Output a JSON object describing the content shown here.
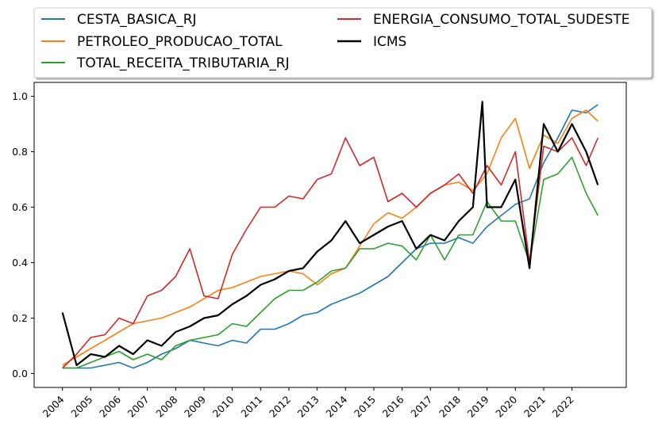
{
  "chart_data": {
    "type": "line",
    "title": "",
    "xlabel": "",
    "ylabel": "",
    "x_ticks": [
      "2004",
      "2005",
      "2006",
      "2007",
      "2008",
      "2009",
      "2010",
      "2011",
      "2012",
      "2013",
      "2014",
      "2015",
      "2016",
      "2017",
      "2018",
      "2019",
      "2020",
      "2021",
      "2022"
    ],
    "y_ticks": [
      "0.0",
      "0.2",
      "0.4",
      "0.6",
      "0.8",
      "1.0"
    ],
    "xlim": [
      "2003-01",
      "2023-12"
    ],
    "ylim": [
      -0.05,
      1.05
    ],
    "grid": false,
    "legend": {
      "placement": "top (outside plot, 2 columns)"
    },
    "series": [
      {
        "name": "CESTA_BASICA_RJ",
        "color": "#1f77b4",
        "points": [
          [
            "2004-01",
            0.02
          ],
          [
            "2004-07",
            0.02
          ],
          [
            "2005-01",
            0.02
          ],
          [
            "2005-07",
            0.03
          ],
          [
            "2006-01",
            0.04
          ],
          [
            "2006-07",
            0.02
          ],
          [
            "2007-01",
            0.04
          ],
          [
            "2007-07",
            0.07
          ],
          [
            "2008-01",
            0.09
          ],
          [
            "2008-07",
            0.12
          ],
          [
            "2009-01",
            0.11
          ],
          [
            "2009-07",
            0.1
          ],
          [
            "2010-01",
            0.12
          ],
          [
            "2010-07",
            0.11
          ],
          [
            "2011-01",
            0.16
          ],
          [
            "2011-07",
            0.16
          ],
          [
            "2012-01",
            0.18
          ],
          [
            "2012-07",
            0.21
          ],
          [
            "2013-01",
            0.22
          ],
          [
            "2013-07",
            0.25
          ],
          [
            "2014-01",
            0.27
          ],
          [
            "2014-07",
            0.29
          ],
          [
            "2015-01",
            0.32
          ],
          [
            "2015-07",
            0.35
          ],
          [
            "2016-01",
            0.4
          ],
          [
            "2016-07",
            0.45
          ],
          [
            "2017-01",
            0.47
          ],
          [
            "2017-07",
            0.47
          ],
          [
            "2018-01",
            0.49
          ],
          [
            "2018-07",
            0.47
          ],
          [
            "2019-01",
            0.53
          ],
          [
            "2019-07",
            0.57
          ],
          [
            "2020-01",
            0.61
          ],
          [
            "2020-07",
            0.63
          ],
          [
            "2021-01",
            0.76
          ],
          [
            "2021-07",
            0.85
          ],
          [
            "2022-01",
            0.95
          ],
          [
            "2022-07",
            0.94
          ],
          [
            "2022-12",
            0.97
          ]
        ]
      },
      {
        "name": "PETROLEO_PRODUCAO_TOTAL",
        "color": "#ff7f0e",
        "points": [
          [
            "2004-01",
            0.03
          ],
          [
            "2004-07",
            0.06
          ],
          [
            "2005-01",
            0.09
          ],
          [
            "2005-07",
            0.12
          ],
          [
            "2006-01",
            0.15
          ],
          [
            "2006-07",
            0.18
          ],
          [
            "2007-01",
            0.19
          ],
          [
            "2007-07",
            0.2
          ],
          [
            "2008-01",
            0.22
          ],
          [
            "2008-07",
            0.24
          ],
          [
            "2009-01",
            0.27
          ],
          [
            "2009-07",
            0.3
          ],
          [
            "2010-01",
            0.31
          ],
          [
            "2010-07",
            0.33
          ],
          [
            "2011-01",
            0.35
          ],
          [
            "2011-07",
            0.36
          ],
          [
            "2012-01",
            0.37
          ],
          [
            "2012-07",
            0.36
          ],
          [
            "2013-01",
            0.32
          ],
          [
            "2013-07",
            0.36
          ],
          [
            "2014-01",
            0.38
          ],
          [
            "2014-07",
            0.46
          ],
          [
            "2015-01",
            0.54
          ],
          [
            "2015-07",
            0.58
          ],
          [
            "2016-01",
            0.56
          ],
          [
            "2016-07",
            0.6
          ],
          [
            "2017-01",
            0.65
          ],
          [
            "2017-07",
            0.68
          ],
          [
            "2018-01",
            0.69
          ],
          [
            "2018-07",
            0.66
          ],
          [
            "2019-01",
            0.72
          ],
          [
            "2019-07",
            0.85
          ],
          [
            "2020-01",
            0.92
          ],
          [
            "2020-07",
            0.74
          ],
          [
            "2021-01",
            0.86
          ],
          [
            "2021-07",
            0.83
          ],
          [
            "2022-01",
            0.92
          ],
          [
            "2022-07",
            0.95
          ],
          [
            "2022-12",
            0.91
          ]
        ]
      },
      {
        "name": "TOTAL_RECEITA_TRIBUTARIA_RJ",
        "color": "#2ca02c",
        "points": [
          [
            "2004-01",
            0.02
          ],
          [
            "2004-07",
            0.02
          ],
          [
            "2005-01",
            0.04
          ],
          [
            "2005-07",
            0.06
          ],
          [
            "2006-01",
            0.08
          ],
          [
            "2006-07",
            0.05
          ],
          [
            "2007-01",
            0.07
          ],
          [
            "2007-07",
            0.05
          ],
          [
            "2008-01",
            0.1
          ],
          [
            "2008-07",
            0.12
          ],
          [
            "2009-01",
            0.13
          ],
          [
            "2009-07",
            0.14
          ],
          [
            "2010-01",
            0.18
          ],
          [
            "2010-07",
            0.17
          ],
          [
            "2011-01",
            0.22
          ],
          [
            "2011-07",
            0.27
          ],
          [
            "2012-01",
            0.3
          ],
          [
            "2012-07",
            0.3
          ],
          [
            "2013-01",
            0.33
          ],
          [
            "2013-07",
            0.37
          ],
          [
            "2014-01",
            0.38
          ],
          [
            "2014-07",
            0.45
          ],
          [
            "2015-01",
            0.45
          ],
          [
            "2015-07",
            0.47
          ],
          [
            "2016-01",
            0.46
          ],
          [
            "2016-07",
            0.41
          ],
          [
            "2017-01",
            0.5
          ],
          [
            "2017-07",
            0.41
          ],
          [
            "2018-01",
            0.5
          ],
          [
            "2018-07",
            0.5
          ],
          [
            "2019-01",
            0.62
          ],
          [
            "2019-07",
            0.55
          ],
          [
            "2020-01",
            0.55
          ],
          [
            "2020-07",
            0.4
          ],
          [
            "2021-01",
            0.7
          ],
          [
            "2021-07",
            0.72
          ],
          [
            "2022-01",
            0.78
          ],
          [
            "2022-07",
            0.65
          ],
          [
            "2022-12",
            0.57
          ]
        ]
      },
      {
        "name": "ENERGIA_CONSUMO_TOTAL_SUDESTE",
        "color": "#d62728",
        "points": [
          [
            "2004-01",
            0.02
          ],
          [
            "2004-07",
            0.07
          ],
          [
            "2005-01",
            0.13
          ],
          [
            "2005-07",
            0.14
          ],
          [
            "2006-01",
            0.2
          ],
          [
            "2006-07",
            0.18
          ],
          [
            "2007-01",
            0.28
          ],
          [
            "2007-07",
            0.3
          ],
          [
            "2008-01",
            0.35
          ],
          [
            "2008-07",
            0.45
          ],
          [
            "2009-01",
            0.28
          ],
          [
            "2009-07",
            0.27
          ],
          [
            "2010-01",
            0.43
          ],
          [
            "2010-07",
            0.52
          ],
          [
            "2011-01",
            0.6
          ],
          [
            "2011-07",
            0.6
          ],
          [
            "2012-01",
            0.64
          ],
          [
            "2012-07",
            0.63
          ],
          [
            "2013-01",
            0.7
          ],
          [
            "2013-07",
            0.72
          ],
          [
            "2014-01",
            0.85
          ],
          [
            "2014-07",
            0.75
          ],
          [
            "2015-01",
            0.78
          ],
          [
            "2015-07",
            0.62
          ],
          [
            "2016-01",
            0.65
          ],
          [
            "2016-07",
            0.6
          ],
          [
            "2017-01",
            0.65
          ],
          [
            "2017-07",
            0.68
          ],
          [
            "2018-01",
            0.72
          ],
          [
            "2018-07",
            0.65
          ],
          [
            "2019-01",
            0.75
          ],
          [
            "2019-07",
            0.68
          ],
          [
            "2020-01",
            0.8
          ],
          [
            "2020-07",
            0.4
          ],
          [
            "2021-01",
            0.82
          ],
          [
            "2021-07",
            0.8
          ],
          [
            "2022-01",
            0.85
          ],
          [
            "2022-07",
            0.75
          ],
          [
            "2022-12",
            0.85
          ]
        ]
      },
      {
        "name": "ICMS",
        "color": "#000000",
        "points": [
          [
            "2004-01",
            0.22
          ],
          [
            "2004-07",
            0.03
          ],
          [
            "2005-01",
            0.07
          ],
          [
            "2005-07",
            0.06
          ],
          [
            "2006-01",
            0.1
          ],
          [
            "2006-07",
            0.07
          ],
          [
            "2007-01",
            0.12
          ],
          [
            "2007-07",
            0.1
          ],
          [
            "2008-01",
            0.15
          ],
          [
            "2008-07",
            0.17
          ],
          [
            "2009-01",
            0.2
          ],
          [
            "2009-07",
            0.21
          ],
          [
            "2010-01",
            0.25
          ],
          [
            "2010-07",
            0.28
          ],
          [
            "2011-01",
            0.32
          ],
          [
            "2011-07",
            0.34
          ],
          [
            "2012-01",
            0.37
          ],
          [
            "2012-07",
            0.38
          ],
          [
            "2013-01",
            0.44
          ],
          [
            "2013-07",
            0.48
          ],
          [
            "2014-01",
            0.55
          ],
          [
            "2014-07",
            0.47
          ],
          [
            "2015-01",
            0.5
          ],
          [
            "2015-07",
            0.53
          ],
          [
            "2016-01",
            0.55
          ],
          [
            "2016-07",
            0.45
          ],
          [
            "2017-01",
            0.5
          ],
          [
            "2017-07",
            0.48
          ],
          [
            "2018-01",
            0.55
          ],
          [
            "2018-07",
            0.6
          ],
          [
            "2018-11",
            0.98
          ],
          [
            "2019-01",
            0.6
          ],
          [
            "2019-07",
            0.6
          ],
          [
            "2020-01",
            0.7
          ],
          [
            "2020-07",
            0.38
          ],
          [
            "2021-01",
            0.9
          ],
          [
            "2021-07",
            0.8
          ],
          [
            "2022-01",
            0.9
          ],
          [
            "2022-07",
            0.8
          ],
          [
            "2022-12",
            0.68
          ]
        ]
      }
    ]
  }
}
